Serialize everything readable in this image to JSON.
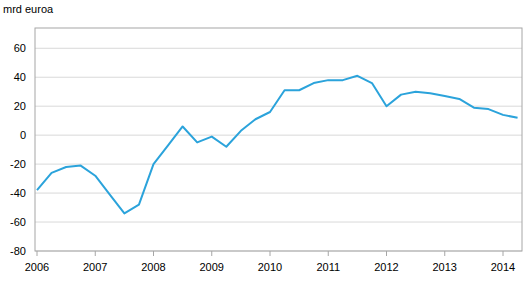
{
  "chart_data": {
    "type": "line",
    "y_label": "mrd euroa",
    "categories": [
      "2006",
      null,
      null,
      null,
      "2007",
      null,
      null,
      null,
      "2008",
      null,
      null,
      null,
      "2009",
      null,
      null,
      null,
      "2010",
      null,
      null,
      null,
      "2011",
      null,
      null,
      null,
      "2012",
      null,
      null,
      null,
      "2013",
      null,
      null,
      null,
      "2014",
      null
    ],
    "values": [
      -38,
      -26,
      -22,
      -21,
      -28,
      -41,
      -54,
      -48,
      -20,
      -7,
      6,
      -5,
      -1,
      -8,
      3,
      11,
      16,
      31,
      31,
      36,
      38,
      38,
      41,
      36,
      20,
      28,
      30,
      29,
      27,
      25,
      19,
      18,
      14,
      12
    ],
    "color": "#2ba3db",
    "ylim": [
      -80,
      74
    ],
    "yticks": [
      -80,
      -60,
      -40,
      -20,
      0,
      20,
      40,
      60
    ],
    "grid": true
  }
}
